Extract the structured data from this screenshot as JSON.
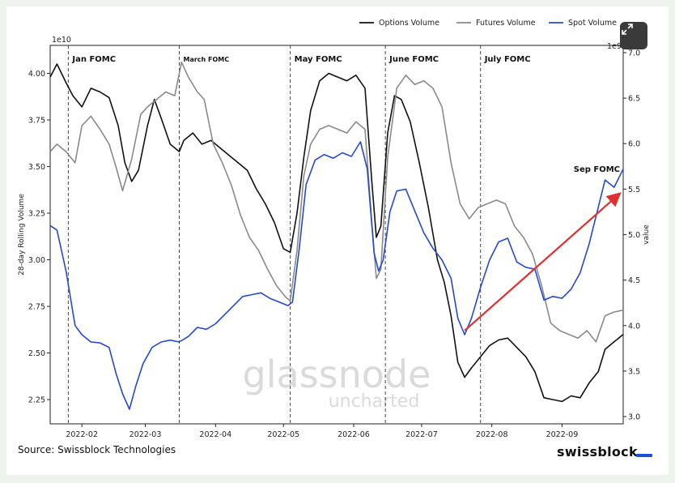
{
  "chart_data": {
    "type": "line",
    "ylabel": "28-day Rolling Volume",
    "y2label": "value",
    "y_offset_label": "1e10",
    "y2_offset_label": "1e9",
    "x_ticks": [
      "2022-02",
      "2022-03",
      "2022-04",
      "2022-05",
      "2022-06",
      "2022-07",
      "2022-08",
      "2022-09"
    ],
    "y_ticks": [
      "2.25",
      "2.50",
      "2.75",
      "3.00",
      "3.25",
      "3.50",
      "3.75",
      "4.00"
    ],
    "y2_ticks": [
      "3.0",
      "3.5",
      "4.0",
      "4.5",
      "5.0",
      "5.5",
      "6.0",
      "6.5",
      "7.0"
    ],
    "ylim": [
      2.12,
      4.15
    ],
    "y2lim": [
      2.92,
      7.08
    ],
    "xlim": [
      "2022-01-18",
      "2022-09-28"
    ],
    "grid": false,
    "legend_position": "top-right",
    "series": [
      {
        "name": "Options Volume",
        "axis": "left",
        "color": "#111111",
        "points": [
          [
            "2022-01-18",
            3.98
          ],
          [
            "2022-01-21",
            4.05
          ],
          [
            "2022-01-25",
            3.95
          ],
          [
            "2022-01-28",
            3.88
          ],
          [
            "2022-02-01",
            3.82
          ],
          [
            "2022-02-05",
            3.92
          ],
          [
            "2022-02-09",
            3.9
          ],
          [
            "2022-02-13",
            3.87
          ],
          [
            "2022-02-17",
            3.72
          ],
          [
            "2022-02-20",
            3.52
          ],
          [
            "2022-02-23",
            3.42
          ],
          [
            "2022-02-26",
            3.48
          ],
          [
            "2022-03-02",
            3.72
          ],
          [
            "2022-03-05",
            3.86
          ],
          [
            "2022-03-08",
            3.76
          ],
          [
            "2022-03-12",
            3.62
          ],
          [
            "2022-03-16",
            3.58
          ],
          [
            "2022-03-18",
            3.64
          ],
          [
            "2022-03-22",
            3.68
          ],
          [
            "2022-03-26",
            3.62
          ],
          [
            "2022-03-30",
            3.64
          ],
          [
            "2022-04-03",
            3.6
          ],
          [
            "2022-04-07",
            3.56
          ],
          [
            "2022-04-11",
            3.52
          ],
          [
            "2022-04-15",
            3.48
          ],
          [
            "2022-04-19",
            3.38
          ],
          [
            "2022-04-23",
            3.3
          ],
          [
            "2022-04-27",
            3.2
          ],
          [
            "2022-05-01",
            3.06
          ],
          [
            "2022-05-04",
            3.04
          ],
          [
            "2022-05-07",
            3.25
          ],
          [
            "2022-05-10",
            3.55
          ],
          [
            "2022-05-13",
            3.8
          ],
          [
            "2022-05-17",
            3.96
          ],
          [
            "2022-05-21",
            4.0
          ],
          [
            "2022-05-25",
            3.98
          ],
          [
            "2022-05-29",
            3.96
          ],
          [
            "2022-06-02",
            3.99
          ],
          [
            "2022-06-06",
            3.92
          ],
          [
            "2022-06-09",
            3.42
          ],
          [
            "2022-06-11",
            3.12
          ],
          [
            "2022-06-13",
            3.18
          ],
          [
            "2022-06-16",
            3.68
          ],
          [
            "2022-06-19",
            3.88
          ],
          [
            "2022-06-22",
            3.86
          ],
          [
            "2022-06-26",
            3.74
          ],
          [
            "2022-06-30",
            3.52
          ],
          [
            "2022-07-04",
            3.28
          ],
          [
            "2022-07-08",
            3.0
          ],
          [
            "2022-07-11",
            2.88
          ],
          [
            "2022-07-14",
            2.7
          ],
          [
            "2022-07-17",
            2.45
          ],
          [
            "2022-07-20",
            2.37
          ],
          [
            "2022-07-23",
            2.42
          ],
          [
            "2022-07-27",
            2.48
          ],
          [
            "2022-07-31",
            2.54
          ],
          [
            "2022-08-04",
            2.57
          ],
          [
            "2022-08-08",
            2.58
          ],
          [
            "2022-08-12",
            2.53
          ],
          [
            "2022-08-16",
            2.48
          ],
          [
            "2022-08-20",
            2.4
          ],
          [
            "2022-08-24",
            2.26
          ],
          [
            "2022-08-28",
            2.25
          ],
          [
            "2022-09-01",
            2.24
          ],
          [
            "2022-09-05",
            2.27
          ],
          [
            "2022-09-09",
            2.26
          ],
          [
            "2022-09-13",
            2.34
          ],
          [
            "2022-09-17",
            2.4
          ],
          [
            "2022-09-20",
            2.52
          ],
          [
            "2022-09-24",
            2.56
          ],
          [
            "2022-09-28",
            2.6
          ]
        ]
      },
      {
        "name": "Futures Volume",
        "axis": "left",
        "color": "#8a8a8a",
        "points": [
          [
            "2022-01-18",
            3.58
          ],
          [
            "2022-01-21",
            3.62
          ],
          [
            "2022-01-25",
            3.58
          ],
          [
            "2022-01-29",
            3.52
          ],
          [
            "2022-02-01",
            3.72
          ],
          [
            "2022-02-05",
            3.77
          ],
          [
            "2022-02-09",
            3.7
          ],
          [
            "2022-02-13",
            3.62
          ],
          [
            "2022-02-16",
            3.5
          ],
          [
            "2022-02-19",
            3.37
          ],
          [
            "2022-02-23",
            3.54
          ],
          [
            "2022-02-27",
            3.78
          ],
          [
            "2022-03-02",
            3.82
          ],
          [
            "2022-03-06",
            3.86
          ],
          [
            "2022-03-10",
            3.9
          ],
          [
            "2022-03-14",
            3.88
          ],
          [
            "2022-03-17",
            4.06
          ],
          [
            "2022-03-20",
            3.98
          ],
          [
            "2022-03-24",
            3.9
          ],
          [
            "2022-03-27",
            3.86
          ],
          [
            "2022-03-31",
            3.62
          ],
          [
            "2022-04-04",
            3.52
          ],
          [
            "2022-04-08",
            3.4
          ],
          [
            "2022-04-12",
            3.24
          ],
          [
            "2022-04-16",
            3.12
          ],
          [
            "2022-04-20",
            3.05
          ],
          [
            "2022-04-24",
            2.95
          ],
          [
            "2022-04-28",
            2.86
          ],
          [
            "2022-05-02",
            2.8
          ],
          [
            "2022-05-04",
            2.78
          ],
          [
            "2022-05-07",
            3.05
          ],
          [
            "2022-05-10",
            3.45
          ],
          [
            "2022-05-13",
            3.62
          ],
          [
            "2022-05-17",
            3.7
          ],
          [
            "2022-05-21",
            3.72
          ],
          [
            "2022-05-25",
            3.7
          ],
          [
            "2022-05-29",
            3.68
          ],
          [
            "2022-06-02",
            3.74
          ],
          [
            "2022-06-06",
            3.7
          ],
          [
            "2022-06-09",
            3.2
          ],
          [
            "2022-06-11",
            2.9
          ],
          [
            "2022-06-13",
            2.95
          ],
          [
            "2022-06-16",
            3.55
          ],
          [
            "2022-06-20",
            3.92
          ],
          [
            "2022-06-24",
            3.99
          ],
          [
            "2022-06-28",
            3.94
          ],
          [
            "2022-07-02",
            3.96
          ],
          [
            "2022-07-06",
            3.92
          ],
          [
            "2022-07-10",
            3.82
          ],
          [
            "2022-07-14",
            3.52
          ],
          [
            "2022-07-18",
            3.3
          ],
          [
            "2022-07-22",
            3.22
          ],
          [
            "2022-07-26",
            3.28
          ],
          [
            "2022-07-30",
            3.3
          ],
          [
            "2022-08-03",
            3.32
          ],
          [
            "2022-08-07",
            3.3
          ],
          [
            "2022-08-11",
            3.18
          ],
          [
            "2022-08-15",
            3.12
          ],
          [
            "2022-08-19",
            3.03
          ],
          [
            "2022-08-23",
            2.86
          ],
          [
            "2022-08-27",
            2.66
          ],
          [
            "2022-08-31",
            2.62
          ],
          [
            "2022-09-04",
            2.6
          ],
          [
            "2022-09-08",
            2.58
          ],
          [
            "2022-09-12",
            2.62
          ],
          [
            "2022-09-16",
            2.56
          ],
          [
            "2022-09-20",
            2.7
          ],
          [
            "2022-09-24",
            2.72
          ],
          [
            "2022-09-28",
            2.73
          ]
        ]
      },
      {
        "name": "Spot Volume",
        "axis": "right",
        "color": "#2448d0",
        "points": [
          [
            "2022-01-18",
            5.1
          ],
          [
            "2022-01-21",
            5.05
          ],
          [
            "2022-01-25",
            4.6
          ],
          [
            "2022-01-29",
            4.0
          ],
          [
            "2022-02-01",
            3.9
          ],
          [
            "2022-02-05",
            3.82
          ],
          [
            "2022-02-09",
            3.81
          ],
          [
            "2022-02-13",
            3.76
          ],
          [
            "2022-02-16",
            3.48
          ],
          [
            "2022-02-19",
            3.25
          ],
          [
            "2022-02-22",
            3.08
          ],
          [
            "2022-02-25",
            3.35
          ],
          [
            "2022-02-28",
            3.58
          ],
          [
            "2022-03-04",
            3.76
          ],
          [
            "2022-03-08",
            3.82
          ],
          [
            "2022-03-12",
            3.84
          ],
          [
            "2022-03-16",
            3.82
          ],
          [
            "2022-03-20",
            3.88
          ],
          [
            "2022-03-24",
            3.98
          ],
          [
            "2022-03-28",
            3.96
          ],
          [
            "2022-04-01",
            4.02
          ],
          [
            "2022-04-05",
            4.12
          ],
          [
            "2022-04-09",
            4.22
          ],
          [
            "2022-04-13",
            4.32
          ],
          [
            "2022-04-17",
            4.34
          ],
          [
            "2022-04-21",
            4.36
          ],
          [
            "2022-04-25",
            4.3
          ],
          [
            "2022-04-29",
            4.26
          ],
          [
            "2022-05-03",
            4.22
          ],
          [
            "2022-05-05",
            4.26
          ],
          [
            "2022-05-08",
            4.85
          ],
          [
            "2022-05-11",
            5.55
          ],
          [
            "2022-05-15",
            5.82
          ],
          [
            "2022-05-19",
            5.88
          ],
          [
            "2022-05-23",
            5.84
          ],
          [
            "2022-05-27",
            5.9
          ],
          [
            "2022-05-31",
            5.86
          ],
          [
            "2022-06-04",
            6.02
          ],
          [
            "2022-06-07",
            5.72
          ],
          [
            "2022-06-10",
            4.8
          ],
          [
            "2022-06-12",
            4.6
          ],
          [
            "2022-06-14",
            4.72
          ],
          [
            "2022-06-17",
            5.25
          ],
          [
            "2022-06-20",
            5.48
          ],
          [
            "2022-06-24",
            5.5
          ],
          [
            "2022-06-28",
            5.26
          ],
          [
            "2022-07-02",
            5.02
          ],
          [
            "2022-07-06",
            4.85
          ],
          [
            "2022-07-10",
            4.72
          ],
          [
            "2022-07-14",
            4.52
          ],
          [
            "2022-07-17",
            4.08
          ],
          [
            "2022-07-20",
            3.9
          ],
          [
            "2022-07-23",
            4.08
          ],
          [
            "2022-07-27",
            4.42
          ],
          [
            "2022-07-31",
            4.72
          ],
          [
            "2022-08-04",
            4.92
          ],
          [
            "2022-08-08",
            4.96
          ],
          [
            "2022-08-12",
            4.7
          ],
          [
            "2022-08-16",
            4.64
          ],
          [
            "2022-08-20",
            4.62
          ],
          [
            "2022-08-24",
            4.28
          ],
          [
            "2022-08-28",
            4.32
          ],
          [
            "2022-09-01",
            4.3
          ],
          [
            "2022-09-05",
            4.4
          ],
          [
            "2022-09-09",
            4.58
          ],
          [
            "2022-09-13",
            4.9
          ],
          [
            "2022-09-17",
            5.3
          ],
          [
            "2022-09-20",
            5.6
          ],
          [
            "2022-09-24",
            5.52
          ],
          [
            "2022-09-28",
            5.72
          ]
        ]
      }
    ],
    "events": [
      {
        "label": "Jan FOMC",
        "date": "2022-01-26"
      },
      {
        "label": "March FOMC",
        "date": "2022-03-16"
      },
      {
        "label": "May FOMC",
        "date": "2022-05-04"
      },
      {
        "label": "June FOMC",
        "date": "2022-06-15"
      },
      {
        "label": "July FOMC",
        "date": "2022-07-27"
      },
      {
        "label": "Sep FOMC",
        "date": "2022-09-21"
      }
    ],
    "arrow": {
      "color": "#e03030",
      "from": [
        "2022-07-20",
        2.62
      ],
      "to": [
        "2022-09-26",
        3.35
      ]
    },
    "watermark": {
      "line1": "glassnode",
      "line2": "uncharted"
    }
  },
  "footer": {
    "source": "Source: Swissblock Technologies",
    "brand": "swissblock"
  },
  "controls": {
    "expand_icon": "expand-icon"
  }
}
